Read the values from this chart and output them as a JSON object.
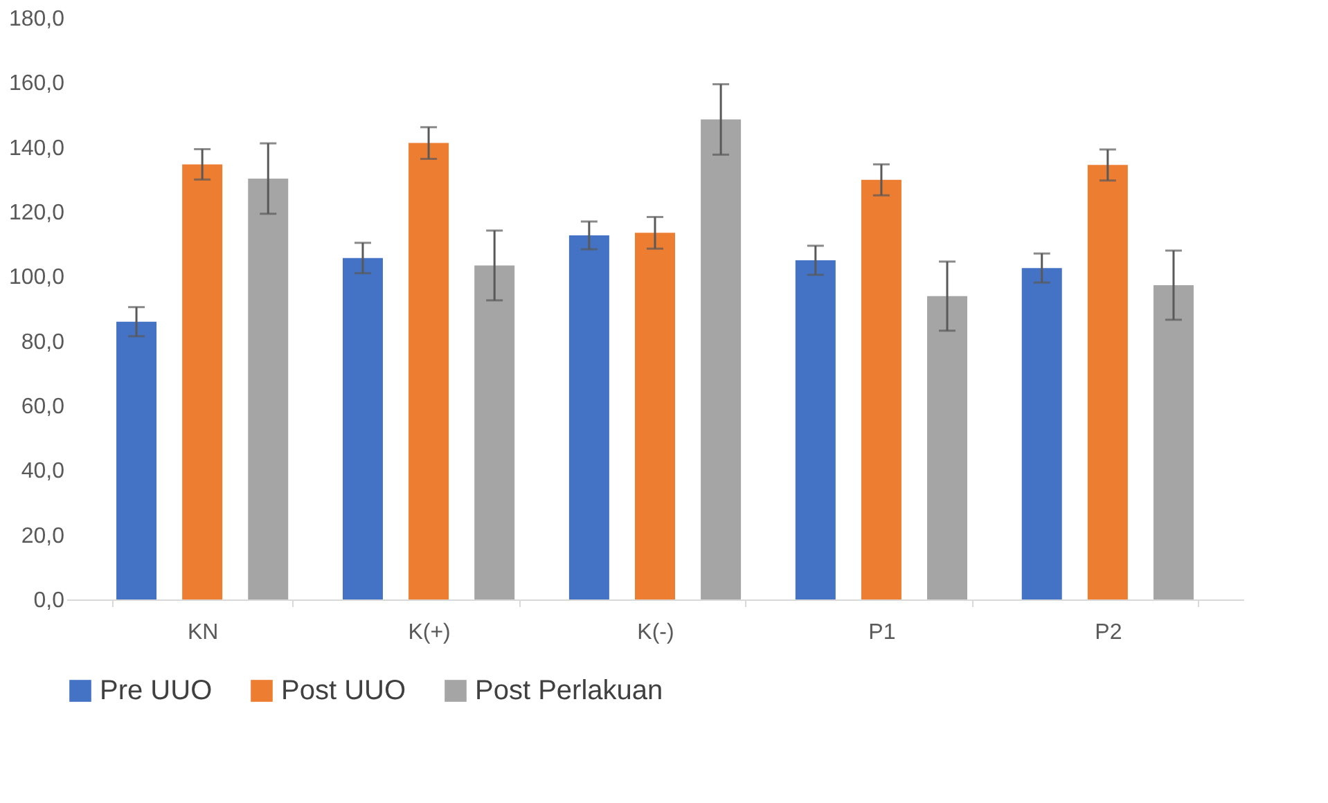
{
  "chart_data": {
    "type": "bar",
    "categories": [
      "KN",
      "K(+)",
      "K(-)",
      "P1",
      "P2"
    ],
    "series": [
      {
        "name": "Pre UUO",
        "color": "#4472c4",
        "values": [
          86.0,
          105.7,
          112.7,
          105.0,
          102.6
        ],
        "errors": [
          4.5,
          4.7,
          4.3,
          4.5,
          4.5
        ]
      },
      {
        "name": "Post UUO",
        "color": "#ed7d31",
        "values": [
          134.7,
          141.3,
          113.5,
          129.9,
          134.5
        ],
        "errors": [
          4.7,
          4.9,
          4.9,
          4.8,
          4.8
        ]
      },
      {
        "name": "Post Perlakuan",
        "color": "#a5a5a5",
        "values": [
          130.3,
          103.4,
          148.6,
          93.9,
          97.3
        ],
        "errors": [
          10.9,
          10.8,
          10.9,
          10.7,
          10.7
        ]
      }
    ],
    "ylim": [
      0,
      180
    ],
    "yticks": [
      {
        "value": 0,
        "label": "0,0"
      },
      {
        "value": 20,
        "label": "20,0"
      },
      {
        "value": 40,
        "label": "40,0"
      },
      {
        "value": 60,
        "label": "60,0"
      },
      {
        "value": 80,
        "label": "80,0"
      },
      {
        "value": 100,
        "label": "100,0"
      },
      {
        "value": 120,
        "label": "120,0"
      },
      {
        "value": 140,
        "label": "140,0"
      },
      {
        "value": 160,
        "label": "160,0"
      },
      {
        "value": 180,
        "label": "180,0"
      }
    ],
    "grid": false,
    "legend": "bottom"
  }
}
